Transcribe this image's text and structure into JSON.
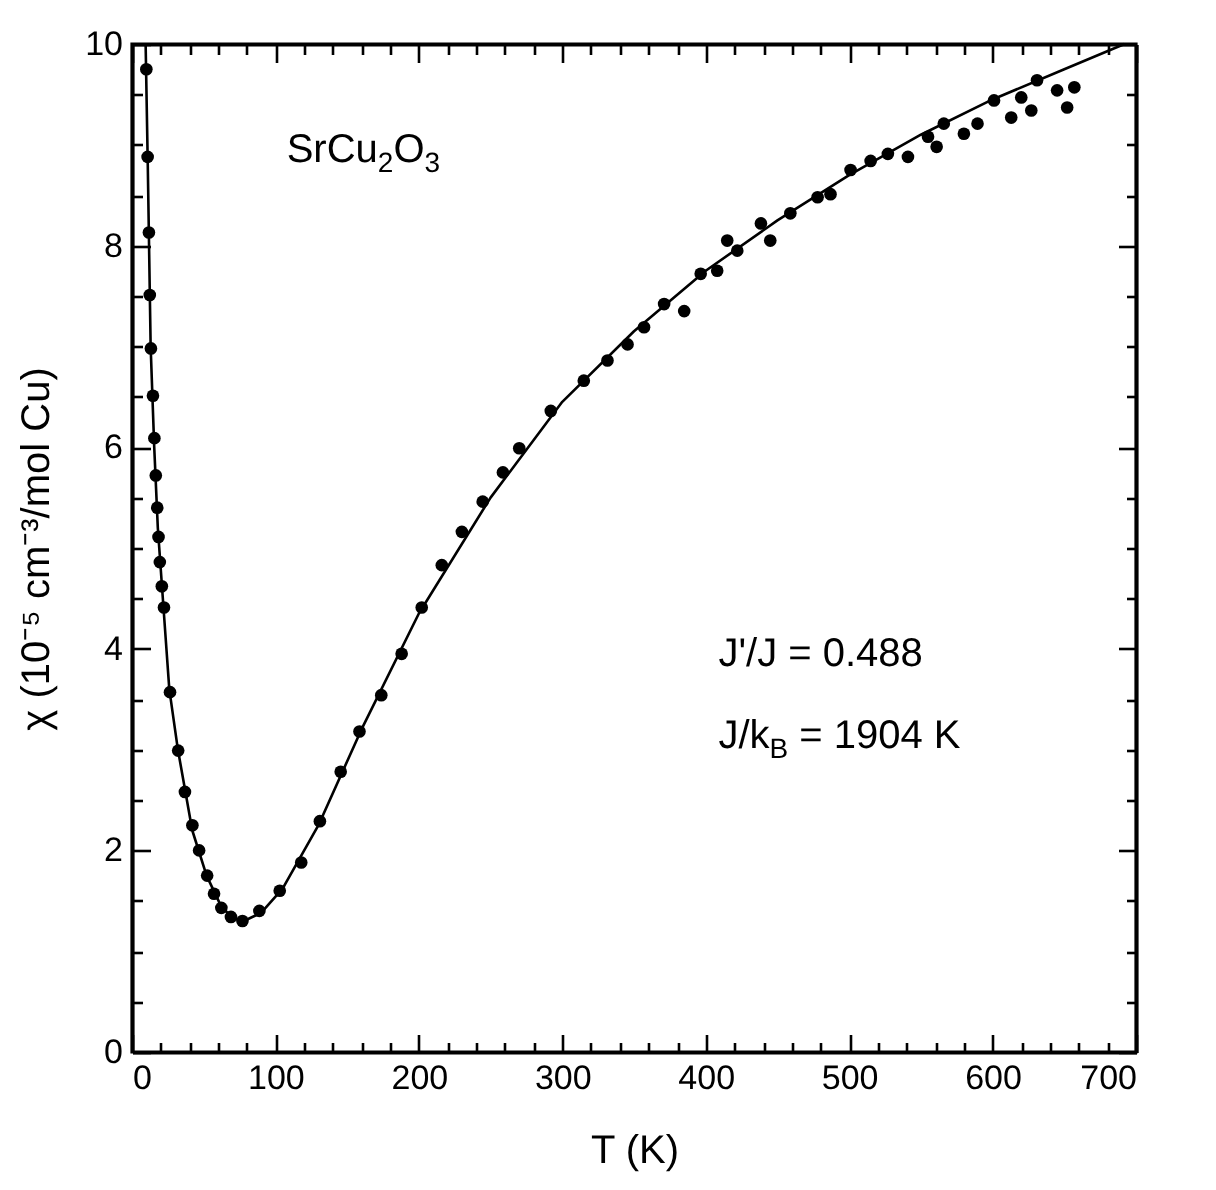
{
  "chart_data": {
    "type": "scatter",
    "xlabel": "T (K)",
    "ylabel": "χ  (10⁻⁵ cm⁻³/mol Cu)",
    "annotations": [
      "SrCu$_{2}$O$_{3}$",
      "J'/J = 0.488",
      "J/k$_{B}$ = 1904 K"
    ],
    "xlim": [
      0,
      700
    ],
    "ylim": [
      0,
      10
    ],
    "xticks": [
      0,
      {
        "value": 20,
        "label": null
      },
      {
        "value": 40,
        "label": null
      },
      {
        "value": 60,
        "label": null
      },
      {
        "value": 80,
        "label": null
      },
      100,
      {
        "value": 120,
        "label": null
      },
      {
        "value": 140,
        "label": null
      },
      {
        "value": 160,
        "label": null
      },
      {
        "value": 180,
        "label": null
      },
      200,
      {
        "value": 220,
        "label": null
      },
      {
        "value": 240,
        "label": null
      },
      {
        "value": 260,
        "label": null
      },
      {
        "value": 280,
        "label": null
      },
      300,
      {
        "value": 320,
        "label": null
      },
      {
        "value": 340,
        "label": null
      },
      {
        "value": 360,
        "label": null
      },
      {
        "value": 380,
        "label": null
      },
      400,
      {
        "value": 420,
        "label": null
      },
      {
        "value": 440,
        "label": null
      },
      {
        "value": 460,
        "label": null
      },
      {
        "value": 480,
        "label": null
      },
      500,
      {
        "value": 520,
        "label": null
      },
      {
        "value": 540,
        "label": null
      },
      {
        "value": 560,
        "label": null
      },
      {
        "value": 580,
        "label": null
      },
      600,
      {
        "value": 620,
        "label": null
      },
      {
        "value": 640,
        "label": null
      },
      {
        "value": 660,
        "label": null
      },
      {
        "value": 680,
        "label": null
      },
      700
    ],
    "yticks": [
      0,
      {
        "value": 0.5,
        "label": null
      },
      {
        "value": 1,
        "label": null
      },
      {
        "value": 1.5,
        "label": null
      },
      2,
      {
        "value": 2.5,
        "label": null
      },
      {
        "value": 3,
        "label": null
      },
      {
        "value": 3.5,
        "label": null
      },
      4,
      {
        "value": 4.5,
        "label": null
      },
      {
        "value": 5,
        "label": null
      },
      {
        "value": 5.5,
        "label": null
      },
      6,
      {
        "value": 6.5,
        "label": null
      },
      {
        "value": 7,
        "label": null
      },
      {
        "value": 7.5,
        "label": null
      },
      8,
      {
        "value": 8.5,
        "label": null
      },
      {
        "value": 9,
        "label": null
      },
      {
        "value": 9.5,
        "label": null
      },
      10
    ],
    "grid": false,
    "legend": false,
    "series": [
      {
        "marker": "circle",
        "color": "#000000",
        "x": [
          10.0,
          10.9,
          11.8,
          12.4,
          13.2,
          14.6,
          15.6,
          16.6,
          17.6,
          18.5,
          19.4,
          20.8,
          22.3,
          26.5,
          32.2,
          36.9,
          42.1,
          46.8,
          52.4,
          57.2,
          62.3,
          69,
          77,
          88.8,
          103,
          118,
          131,
          145.5,
          158.6,
          173.8,
          188,
          202,
          216,
          230,
          244.5,
          258.6,
          270,
          292,
          315,
          331.5,
          345.5,
          357,
          371,
          385,
          396.5,
          408,
          415,
          422,
          438.5,
          445,
          459,
          478,
          487,
          501,
          515,
          527,
          541,
          555,
          561,
          566,
          580,
          589.5,
          601,
          613,
          620,
          627,
          631,
          645,
          652,
          657
        ],
        "values": [
          9.75,
          8.88,
          8.13,
          7.51,
          6.98,
          6.51,
          6.09,
          5.72,
          5.4,
          5.11,
          4.86,
          4.62,
          4.41,
          3.57,
          2.99,
          2.58,
          2.25,
          2.0,
          1.75,
          1.57,
          1.43,
          1.34,
          1.3,
          1.4,
          1.6,
          1.88,
          2.29,
          2.78,
          3.18,
          3.54,
          3.95,
          4.41,
          4.83,
          5.16,
          5.46,
          5.75,
          5.99,
          6.36,
          6.66,
          6.86,
          7.02,
          7.19,
          7.42,
          7.35,
          7.72,
          7.75,
          8.05,
          7.95,
          8.22,
          8.05,
          8.32,
          8.48,
          8.51,
          8.75,
          8.84,
          8.91,
          8.88,
          9.08,
          8.98,
          9.21,
          9.11,
          9.21,
          9.44,
          9.27,
          9.47,
          9.34,
          9.64,
          9.54,
          9.37,
          9.57
        ]
      },
      {
        "type": "line",
        "color": "#000000",
        "x": [
          9.5,
          11,
          13,
          15.5,
          18,
          22,
          26,
          32,
          42,
          52,
          62,
          70,
          78,
          90,
          105,
          130,
          160,
          200,
          250,
          300,
          350,
          400,
          450,
          500,
          550,
          600,
          650,
          692
        ],
        "values": [
          10,
          8.8,
          7.0,
          6.0,
          5.2,
          4.4,
          3.6,
          3.0,
          2.2,
          1.75,
          1.45,
          1.33,
          1.3,
          1.38,
          1.62,
          2.25,
          3.2,
          4.35,
          5.5,
          6.45,
          7.15,
          7.75,
          8.25,
          8.7,
          9.1,
          9.45,
          9.75,
          10
        ]
      }
    ]
  }
}
